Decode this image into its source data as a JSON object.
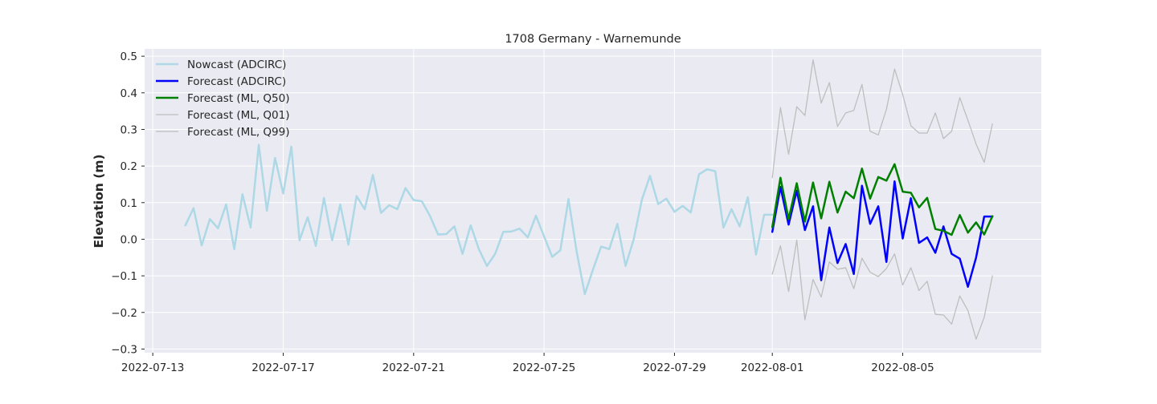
{
  "chart_data": {
    "type": "line",
    "title": "1708 Germany - Warnemunde",
    "xlabel": "",
    "ylabel": "Elevation (m)",
    "x_type": "date",
    "xlim": [
      "2022-07-12T18:00",
      "2022-08-09T06:00"
    ],
    "ylim": [
      -0.31,
      0.52
    ],
    "x_ticks": [
      "2022-07-13",
      "2022-07-17",
      "2022-07-21",
      "2022-07-25",
      "2022-07-29",
      "2022-08-01",
      "2022-08-05"
    ],
    "y_ticks": [
      -0.3,
      -0.2,
      -0.1,
      0.0,
      0.1,
      0.2,
      0.3,
      0.4,
      0.5
    ],
    "y_tick_labels": [
      "−0.3",
      "−0.2",
      "−0.1",
      "0.0",
      "0.1",
      "0.2",
      "0.3",
      "0.4",
      "0.5"
    ],
    "grid": true,
    "legend_position": "top-left",
    "background": "#EAEAF2",
    "series": [
      {
        "name": "Nowcast (ADCIRC)",
        "color": "#ADD8E6",
        "width": 2.5,
        "x": [
          "2022-07-14T00:00",
          "2022-07-14T06:00",
          "2022-07-14T12:00",
          "2022-07-14T18:00",
          "2022-07-15T00:00",
          "2022-07-15T06:00",
          "2022-07-15T12:00",
          "2022-07-15T18:00",
          "2022-07-16T00:00",
          "2022-07-16T06:00",
          "2022-07-16T12:00",
          "2022-07-16T18:00",
          "2022-07-17T00:00",
          "2022-07-17T06:00",
          "2022-07-17T12:00",
          "2022-07-17T18:00",
          "2022-07-18T00:00",
          "2022-07-18T06:00",
          "2022-07-18T12:00",
          "2022-07-18T18:00",
          "2022-07-19T00:00",
          "2022-07-19T06:00",
          "2022-07-19T12:00",
          "2022-07-19T18:00",
          "2022-07-20T00:00",
          "2022-07-20T06:00",
          "2022-07-20T12:00",
          "2022-07-20T18:00",
          "2022-07-21T00:00",
          "2022-07-21T06:00",
          "2022-07-21T12:00",
          "2022-07-21T18:00",
          "2022-07-22T00:00",
          "2022-07-22T06:00",
          "2022-07-22T12:00",
          "2022-07-22T18:00",
          "2022-07-23T00:00",
          "2022-07-23T06:00",
          "2022-07-23T12:00",
          "2022-07-23T18:00",
          "2022-07-24T00:00",
          "2022-07-24T06:00",
          "2022-07-24T12:00",
          "2022-07-24T18:00",
          "2022-07-25T00:00",
          "2022-07-25T06:00",
          "2022-07-25T12:00",
          "2022-07-25T18:00",
          "2022-07-26T00:00",
          "2022-07-26T06:00",
          "2022-07-26T12:00",
          "2022-07-26T18:00",
          "2022-07-27T00:00",
          "2022-07-27T06:00",
          "2022-07-27T12:00",
          "2022-07-27T18:00",
          "2022-07-28T00:00",
          "2022-07-28T06:00",
          "2022-07-28T12:00",
          "2022-07-28T18:00",
          "2022-07-29T00:00",
          "2022-07-29T06:00",
          "2022-07-29T12:00",
          "2022-07-29T18:00",
          "2022-07-30T00:00",
          "2022-07-30T06:00",
          "2022-07-30T12:00",
          "2022-07-30T18:00",
          "2022-07-31T00:00",
          "2022-07-31T06:00",
          "2022-07-31T12:00",
          "2022-07-31T18:00",
          "2022-08-01T00:00"
        ],
        "values": [
          0.038,
          0.085,
          -0.017,
          0.055,
          0.03,
          0.095,
          -0.027,
          0.123,
          0.032,
          0.258,
          0.078,
          0.222,
          0.125,
          0.253,
          -0.003,
          0.06,
          -0.018,
          0.113,
          -0.003,
          0.095,
          -0.015,
          0.118,
          0.082,
          0.176,
          0.072,
          0.093,
          0.082,
          0.14,
          0.107,
          0.104,
          0.064,
          0.013,
          0.014,
          0.035,
          -0.04,
          0.038,
          -0.027,
          -0.073,
          -0.04,
          0.02,
          0.021,
          0.029,
          0.005,
          0.064,
          0.008,
          -0.048,
          -0.03,
          0.11,
          -0.034,
          -0.15,
          -0.083,
          -0.02,
          -0.027,
          0.042,
          -0.073,
          0.0,
          0.108,
          0.173,
          0.096,
          0.111,
          0.075,
          0.091,
          0.073,
          0.177,
          0.191,
          0.186,
          0.032,
          0.082,
          0.035,
          0.115,
          -0.042,
          0.067,
          0.067
        ]
      },
      {
        "name": "Forecast (ADCIRC)",
        "color": "#0000FF",
        "width": 2.5,
        "x": [
          "2022-08-01T00:00",
          "2022-08-01T06:00",
          "2022-08-01T12:00",
          "2022-08-01T18:00",
          "2022-08-02T00:00",
          "2022-08-02T06:00",
          "2022-08-02T12:00",
          "2022-08-02T18:00",
          "2022-08-03T00:00",
          "2022-08-03T06:00",
          "2022-08-03T12:00",
          "2022-08-03T18:00",
          "2022-08-04T00:00",
          "2022-08-04T06:00",
          "2022-08-04T12:00",
          "2022-08-04T18:00",
          "2022-08-05T00:00",
          "2022-08-05T06:00",
          "2022-08-05T12:00",
          "2022-08-05T18:00",
          "2022-08-06T00:00",
          "2022-08-06T06:00",
          "2022-08-06T12:00",
          "2022-08-06T18:00",
          "2022-08-07T00:00",
          "2022-08-07T06:00",
          "2022-08-07T12:00",
          "2022-08-07T18:00"
        ],
        "values": [
          0.02,
          0.143,
          0.04,
          0.133,
          0.025,
          0.09,
          -0.112,
          0.032,
          -0.065,
          -0.013,
          -0.095,
          0.146,
          0.042,
          0.09,
          -0.062,
          0.158,
          0.002,
          0.112,
          -0.01,
          0.005,
          -0.037,
          0.035,
          -0.04,
          -0.053,
          -0.13,
          -0.05,
          0.062,
          0.062
        ]
      },
      {
        "name": "Forecast (ML, Q50)",
        "color": "#008000",
        "width": 2.5,
        "x": [
          "2022-08-01T00:00",
          "2022-08-01T06:00",
          "2022-08-01T12:00",
          "2022-08-01T18:00",
          "2022-08-02T00:00",
          "2022-08-02T06:00",
          "2022-08-02T12:00",
          "2022-08-02T18:00",
          "2022-08-03T00:00",
          "2022-08-03T06:00",
          "2022-08-03T12:00",
          "2022-08-03T18:00",
          "2022-08-04T00:00",
          "2022-08-04T06:00",
          "2022-08-04T12:00",
          "2022-08-04T18:00",
          "2022-08-05T00:00",
          "2022-08-05T06:00",
          "2022-08-05T12:00",
          "2022-08-05T18:00",
          "2022-08-06T00:00",
          "2022-08-06T06:00",
          "2022-08-06T12:00",
          "2022-08-06T18:00",
          "2022-08-07T00:00",
          "2022-08-07T06:00",
          "2022-08-07T12:00",
          "2022-08-07T18:00"
        ],
        "values": [
          0.033,
          0.168,
          0.055,
          0.153,
          0.048,
          0.155,
          0.057,
          0.157,
          0.073,
          0.13,
          0.112,
          0.193,
          0.111,
          0.17,
          0.16,
          0.205,
          0.13,
          0.127,
          0.087,
          0.113,
          0.028,
          0.023,
          0.012,
          0.066,
          0.018,
          0.046,
          0.013,
          0.063
        ]
      },
      {
        "name": "Forecast (ML, Q01)",
        "color": "#BEBEBE",
        "width": 1.3,
        "x": [
          "2022-08-01T00:00",
          "2022-08-01T06:00",
          "2022-08-01T12:00",
          "2022-08-01T18:00",
          "2022-08-02T00:00",
          "2022-08-02T06:00",
          "2022-08-02T12:00",
          "2022-08-02T18:00",
          "2022-08-03T00:00",
          "2022-08-03T06:00",
          "2022-08-03T12:00",
          "2022-08-03T18:00",
          "2022-08-04T00:00",
          "2022-08-04T06:00",
          "2022-08-04T12:00",
          "2022-08-04T18:00",
          "2022-08-05T00:00",
          "2022-08-05T06:00",
          "2022-08-05T12:00",
          "2022-08-05T18:00",
          "2022-08-06T00:00",
          "2022-08-06T06:00",
          "2022-08-06T12:00",
          "2022-08-06T18:00",
          "2022-08-07T00:00",
          "2022-08-07T06:00",
          "2022-08-07T12:00",
          "2022-08-07T18:00"
        ],
        "values": [
          0.168,
          0.36,
          0.232,
          0.362,
          0.338,
          0.49,
          0.372,
          0.428,
          0.308,
          0.345,
          0.352,
          0.423,
          0.295,
          0.285,
          0.355,
          0.465,
          0.395,
          0.31,
          0.29,
          0.29,
          0.345,
          0.275,
          0.295,
          0.387,
          0.325,
          0.26,
          0.21,
          0.315
        ]
      },
      {
        "name": "Forecast (ML, Q99)",
        "color": "#BEBEBE",
        "width": 1.3,
        "x": [
          "2022-08-01T00:00",
          "2022-08-01T06:00",
          "2022-08-01T12:00",
          "2022-08-01T18:00",
          "2022-08-02T00:00",
          "2022-08-02T06:00",
          "2022-08-02T12:00",
          "2022-08-02T18:00",
          "2022-08-03T00:00",
          "2022-08-03T06:00",
          "2022-08-03T12:00",
          "2022-08-03T18:00",
          "2022-08-04T00:00",
          "2022-08-04T06:00",
          "2022-08-04T12:00",
          "2022-08-04T18:00",
          "2022-08-05T00:00",
          "2022-08-05T06:00",
          "2022-08-05T12:00",
          "2022-08-05T18:00",
          "2022-08-06T00:00",
          "2022-08-06T06:00",
          "2022-08-06T12:00",
          "2022-08-06T18:00",
          "2022-08-07T00:00",
          "2022-08-07T06:00",
          "2022-08-07T12:00",
          "2022-08-07T18:00"
        ],
        "values": [
          -0.095,
          -0.018,
          -0.143,
          -0.002,
          -0.22,
          -0.11,
          -0.158,
          -0.062,
          -0.082,
          -0.078,
          -0.135,
          -0.052,
          -0.09,
          -0.102,
          -0.08,
          -0.04,
          -0.125,
          -0.078,
          -0.14,
          -0.115,
          -0.205,
          -0.207,
          -0.232,
          -0.155,
          -0.195,
          -0.273,
          -0.213,
          -0.1
        ]
      }
    ]
  }
}
